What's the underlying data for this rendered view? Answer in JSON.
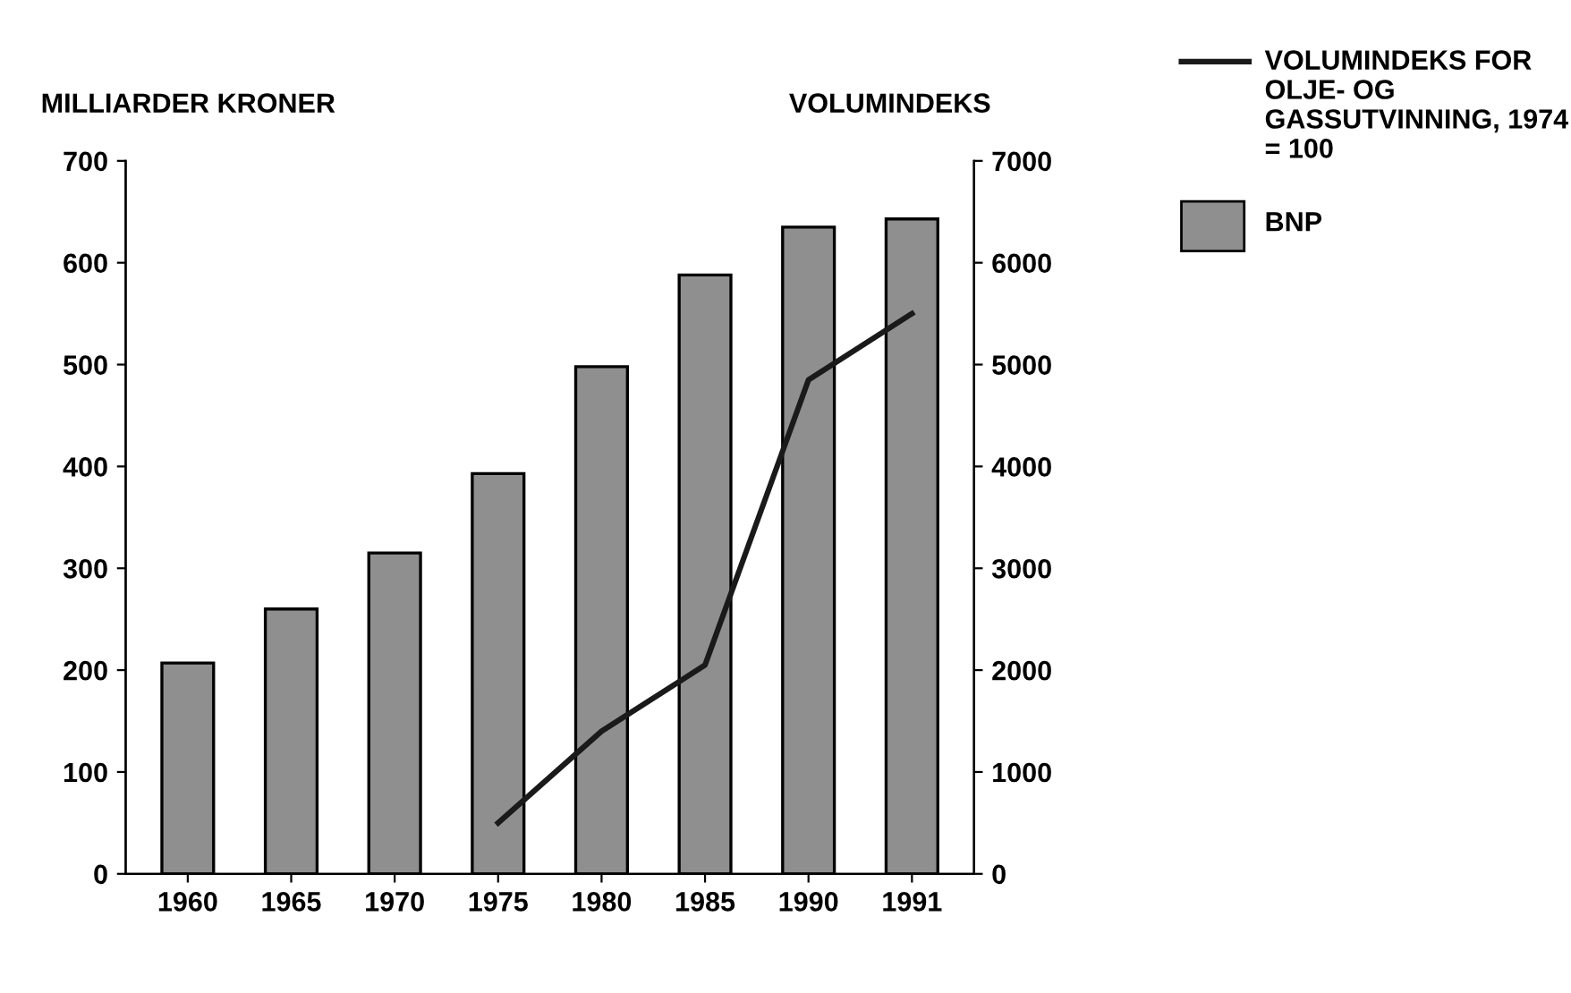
{
  "chart_data": {
    "type": "bar",
    "categories": [
      "1960",
      "1965",
      "1970",
      "1975",
      "1980",
      "1985",
      "1990",
      "1991"
    ],
    "series": [
      {
        "name": "BNP",
        "color": "#8f8f8f",
        "values": [
          207,
          260,
          315,
          393,
          498,
          588,
          635,
          643
        ]
      },
      {
        "name": "VOLUMINDEKS FOR OLJE- OG GASSUTVINNING, 1974 = 100",
        "type": "line",
        "axis": "y2",
        "color": "#1a1a1a",
        "values": [
          null,
          null,
          null,
          500,
          1400,
          2050,
          4850,
          5500
        ]
      }
    ],
    "ylabel": "MILLIARDER KRONER",
    "y2label": "VOLUMINDEKS",
    "ylim": [
      0,
      700
    ],
    "yticks": [
      0,
      100,
      200,
      300,
      400,
      500,
      600,
      700
    ],
    "y2lim": [
      0,
      7000
    ],
    "y2ticks": [
      0,
      1000,
      2000,
      3000,
      4000,
      5000,
      6000,
      7000
    ],
    "legend": "right",
    "grid": false,
    "marker": "none",
    "line_style": "solid"
  }
}
